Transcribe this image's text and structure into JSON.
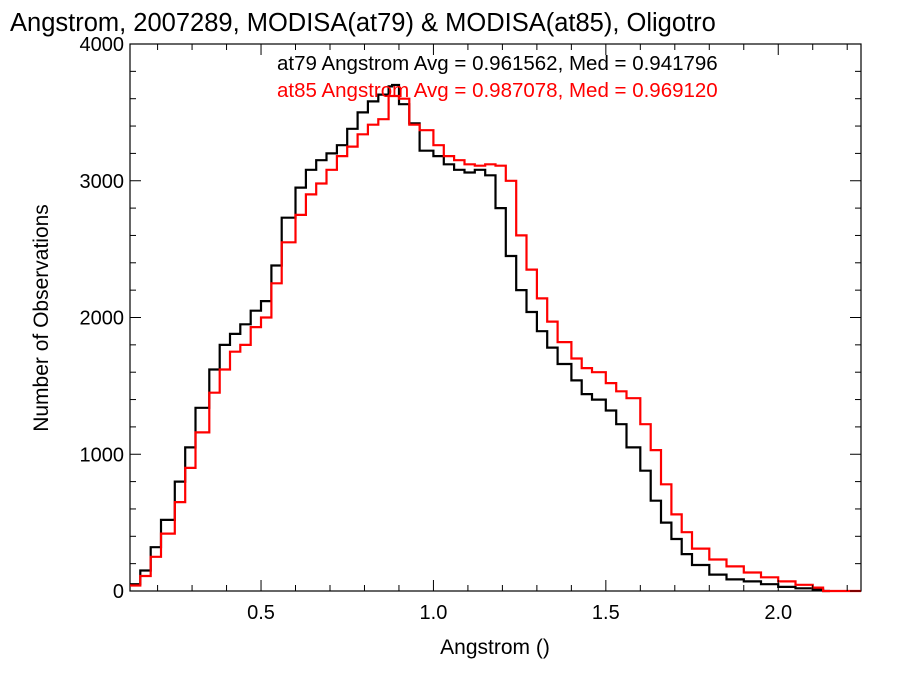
{
  "chart_data": {
    "type": "line",
    "step": true,
    "title": "Angstrom, 2007289, MODISA(at79) & MODISA(at85), Oligotro",
    "xlabel": "Angstrom ()",
    "ylabel": "Number of Observations",
    "xlim": [
      0.12,
      2.24
    ],
    "ylim": [
      0,
      4000
    ],
    "xticks": [
      0.5,
      1.0,
      1.5,
      2.0
    ],
    "xtick_labels": [
      "0.5",
      "1.0",
      "1.5",
      "2.0"
    ],
    "yticks": [
      0,
      1000,
      2000,
      3000,
      4000
    ],
    "ytick_labels": [
      "0",
      "1000",
      "2000",
      "3000",
      "4000"
    ],
    "grid": false,
    "annotations": [
      {
        "text": "at79 Angstrom Avg = 0.961562, Med = 0.941796",
        "color": "#000000"
      },
      {
        "text": "at85 Angstrom Avg = 0.987078, Med = 0.969120",
        "color": "#ff0000"
      }
    ],
    "series": [
      {
        "color": "#000000",
        "x": [
          0.12,
          0.15,
          0.18,
          0.21,
          0.25,
          0.28,
          0.31,
          0.35,
          0.38,
          0.41,
          0.44,
          0.47,
          0.5,
          0.53,
          0.56,
          0.6,
          0.63,
          0.66,
          0.69,
          0.72,
          0.75,
          0.78,
          0.81,
          0.84,
          0.87,
          0.88,
          0.9,
          0.93,
          0.96,
          1.0,
          1.03,
          1.06,
          1.09,
          1.12,
          1.15,
          1.18,
          1.21,
          1.24,
          1.27,
          1.3,
          1.33,
          1.36,
          1.4,
          1.43,
          1.46,
          1.5,
          1.53,
          1.56,
          1.6,
          1.63,
          1.66,
          1.69,
          1.72,
          1.75,
          1.8,
          1.85,
          1.9,
          1.95,
          2.0,
          2.05,
          2.1,
          2.13,
          2.15
        ],
        "y": [
          50,
          150,
          320,
          520,
          800,
          1050,
          1340,
          1620,
          1800,
          1880,
          1950,
          2050,
          2120,
          2380,
          2730,
          2950,
          3080,
          3150,
          3200,
          3260,
          3380,
          3500,
          3580,
          3630,
          3690,
          3700,
          3560,
          3420,
          3220,
          3180,
          3120,
          3080,
          3060,
          3080,
          3040,
          2800,
          2450,
          2200,
          2040,
          1900,
          1780,
          1660,
          1540,
          1440,
          1400,
          1320,
          1220,
          1050,
          880,
          660,
          500,
          380,
          270,
          190,
          120,
          85,
          70,
          50,
          30,
          20,
          10,
          0,
          0
        ]
      },
      {
        "color": "#ff0000",
        "x": [
          0.12,
          0.15,
          0.18,
          0.21,
          0.25,
          0.28,
          0.31,
          0.35,
          0.38,
          0.41,
          0.44,
          0.47,
          0.5,
          0.53,
          0.56,
          0.6,
          0.63,
          0.66,
          0.69,
          0.72,
          0.75,
          0.78,
          0.81,
          0.84,
          0.87,
          0.9,
          0.93,
          0.96,
          1.0,
          1.03,
          1.06,
          1.09,
          1.12,
          1.15,
          1.18,
          1.21,
          1.24,
          1.27,
          1.3,
          1.33,
          1.36,
          1.4,
          1.43,
          1.46,
          1.5,
          1.53,
          1.56,
          1.6,
          1.63,
          1.66,
          1.69,
          1.72,
          1.75,
          1.8,
          1.85,
          1.9,
          1.95,
          2.0,
          2.05,
          2.1,
          2.13,
          2.15,
          2.2,
          2.24
        ],
        "y": [
          40,
          110,
          250,
          420,
          650,
          900,
          1160,
          1450,
          1620,
          1750,
          1800,
          1930,
          2000,
          2250,
          2550,
          2750,
          2900,
          2980,
          3080,
          3180,
          3250,
          3340,
          3410,
          3450,
          3620,
          3600,
          3410,
          3370,
          3260,
          3180,
          3150,
          3120,
          3110,
          3120,
          3110,
          3000,
          2600,
          2350,
          2140,
          1970,
          1820,
          1700,
          1630,
          1600,
          1520,
          1460,
          1410,
          1220,
          1030,
          780,
          560,
          430,
          310,
          230,
          180,
          135,
          100,
          70,
          45,
          25,
          0,
          0,
          0,
          0
        ]
      }
    ]
  }
}
